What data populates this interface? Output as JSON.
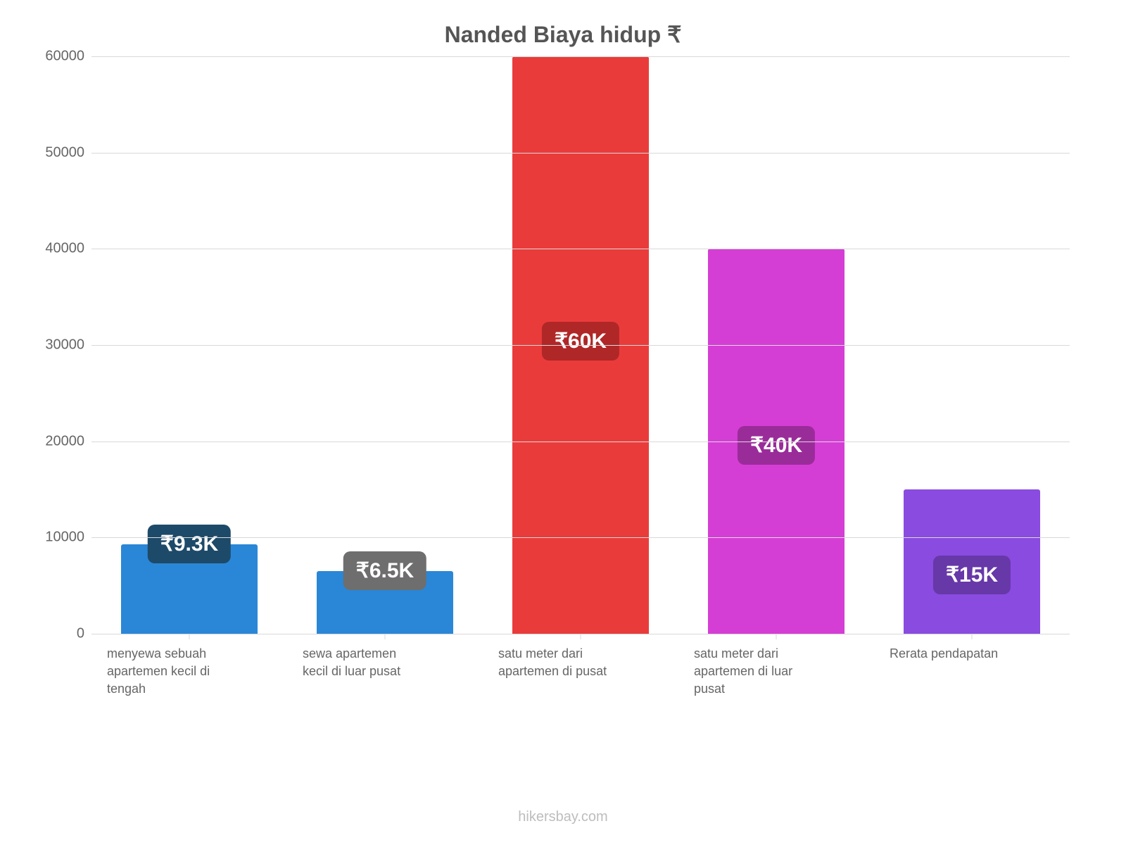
{
  "chart": {
    "type": "bar",
    "title": "Nanded Biaya hidup ₹",
    "title_fontsize": 32,
    "title_color": "#555555",
    "background_color": "#ffffff",
    "grid_color": "#d9d9d9",
    "axis_text_color": "#666666",
    "ylim": [
      0,
      60000
    ],
    "ytick_step": 10000,
    "yticks": [
      {
        "value": 0,
        "label": "0"
      },
      {
        "value": 10000,
        "label": "10000"
      },
      {
        "value": 20000,
        "label": "20000"
      },
      {
        "value": 30000,
        "label": "30000"
      },
      {
        "value": 40000,
        "label": "40000"
      },
      {
        "value": 50000,
        "label": "50000"
      },
      {
        "value": 60000,
        "label": "60000"
      }
    ],
    "ylabel_fontsize": 20,
    "xlabel_fontsize": 18,
    "bar_width": 0.7,
    "value_badge_fontsize": 30,
    "data": [
      {
        "category": "menyewa sebuah apartemen kecil di tengah",
        "value": 9300,
        "value_label": "₹9.3K",
        "bar_color": "#2a87d7",
        "badge_bg": "#1e4a69",
        "badge_pos": "top-inside"
      },
      {
        "category": "sewa apartemen kecil di luar pusat",
        "value": 6500,
        "value_label": "₹6.5K",
        "bar_color": "#2a87d7",
        "badge_bg": "#6e6e6e",
        "badge_pos": "top-inside"
      },
      {
        "category": "satu meter dari apartemen di pusat",
        "value": 60000,
        "value_label": "₹60K",
        "bar_color": "#ea3b3b",
        "badge_bg": "#b02727",
        "badge_pos": "mid"
      },
      {
        "category": "satu meter dari apartemen di luar pusat",
        "value": 40000,
        "value_label": "₹40K",
        "bar_color": "#d53ed5",
        "badge_bg": "#9a2c9a",
        "badge_pos": "mid"
      },
      {
        "category": "Rerata pendapatan",
        "value": 15000,
        "value_label": "₹15K",
        "bar_color": "#8a4be0",
        "badge_bg": "#6738a8",
        "badge_pos": "mid"
      }
    ],
    "attribution": "hikersbay.com",
    "attribution_color": "#bdbdbd",
    "attribution_fontsize": 20
  }
}
